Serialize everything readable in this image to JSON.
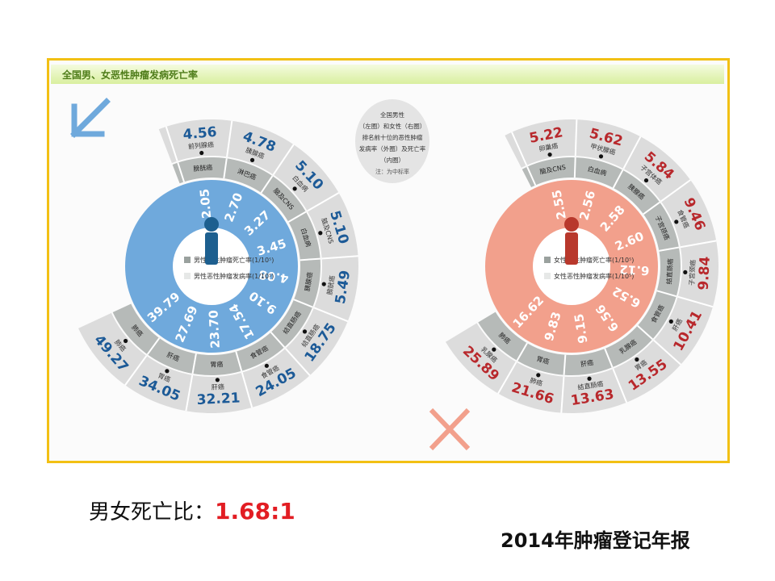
{
  "panel_title": "全国男、女恶性肿瘤发病死亡率",
  "note": {
    "lines": [
      "全国男性",
      "（左圈）和女性（右圈）",
      "排名前十位的恶性肿瘤",
      "发病率（外圈）及死亡率",
      "（内圈）"
    ],
    "footnote": "注：为中标率"
  },
  "ratio": {
    "label": "男女死亡比：",
    "value": "1.68:1"
  },
  "report_title": "2014年肿瘤登记年报",
  "colors": {
    "male": "#6fa9dc",
    "female": "#f2a08c",
    "male_text": "#1c5a97",
    "female_text": "#b8282c",
    "ring": "#dcdcdc",
    "mid_ring": "#b6bab8",
    "frame": "#f2c014"
  },
  "chart_data": [
    {
      "type": "circular-ranking",
      "name": "male",
      "legend": [
        "男性恶性肿瘤死亡率(1/10⁵)",
        "男性恶性肿瘤发病率(1/10⁵)"
      ],
      "items": [
        {
          "cancer": "膀胱癌",
          "incidence": 4.56,
          "mortality": 2.05,
          "incidence_label": "前列腺癌"
        },
        {
          "cancer": "淋巴癌",
          "incidence": 4.78,
          "mortality": 2.7,
          "incidence_label": "胰腺癌"
        },
        {
          "cancer": "脑及CNS",
          "incidence": 5.1,
          "mortality": 3.27,
          "incidence_label": "白血病"
        },
        {
          "cancer": "白血病",
          "incidence": 5.1,
          "mortality": 3.45,
          "incidence_label": "脑及CNS"
        },
        {
          "cancer": "胰腺癌",
          "incidence": 5.49,
          "mortality": 4.08,
          "incidence_label": "膀胱癌"
        },
        {
          "cancer": "结直肠癌",
          "incidence": 18.75,
          "mortality": 9.1,
          "incidence_label": "结直肠癌"
        },
        {
          "cancer": "食管癌",
          "incidence": 24.05,
          "mortality": 17.54,
          "incidence_label": "食管癌"
        },
        {
          "cancer": "胃癌",
          "incidence": 32.21,
          "mortality": 23.7,
          "incidence_label": "肝癌"
        },
        {
          "cancer": "肝癌",
          "incidence": 34.05,
          "mortality": 27.69,
          "incidence_label": "胃癌"
        },
        {
          "cancer": "肺癌",
          "incidence": 49.27,
          "mortality": 39.79,
          "incidence_label": "肺癌"
        }
      ]
    },
    {
      "type": "circular-ranking",
      "name": "female",
      "legend": [
        "女性恶性肿瘤死亡率(1/10⁵)",
        "女性恶性肿瘤发病率(1/10⁵)"
      ],
      "items": [
        {
          "cancer": "脑及CNS",
          "incidence": 5.22,
          "mortality": 2.55,
          "incidence_label": "卵巢癌"
        },
        {
          "cancer": "白血病",
          "incidence": 5.62,
          "mortality": 2.56,
          "incidence_label": "甲状腺癌"
        },
        {
          "cancer": "胰腺癌",
          "incidence": 5.84,
          "mortality": 2.58,
          "incidence_label": "子宫体癌"
        },
        {
          "cancer": "子宫颈癌",
          "incidence": 9.46,
          "mortality": 2.6,
          "incidence_label": "食管癌"
        },
        {
          "cancer": "结直肠癌",
          "incidence": 9.84,
          "mortality": 6.12,
          "incidence_label": "子宫颈癌"
        },
        {
          "cancer": "食管癌",
          "incidence": 10.41,
          "mortality": 6.52,
          "incidence_label": "肝癌"
        },
        {
          "cancer": "乳腺癌",
          "incidence": 13.55,
          "mortality": 6.56,
          "incidence_label": "胃癌"
        },
        {
          "cancer": "肝癌",
          "incidence": 13.63,
          "mortality": 9.15,
          "incidence_label": "结直肠癌"
        },
        {
          "cancer": "胃癌",
          "incidence": 21.66,
          "mortality": 9.83,
          "incidence_label": "肺癌"
        },
        {
          "cancer": "肺癌",
          "incidence": 25.89,
          "mortality": 16.62,
          "incidence_label": "乳腺癌"
        }
      ]
    }
  ]
}
